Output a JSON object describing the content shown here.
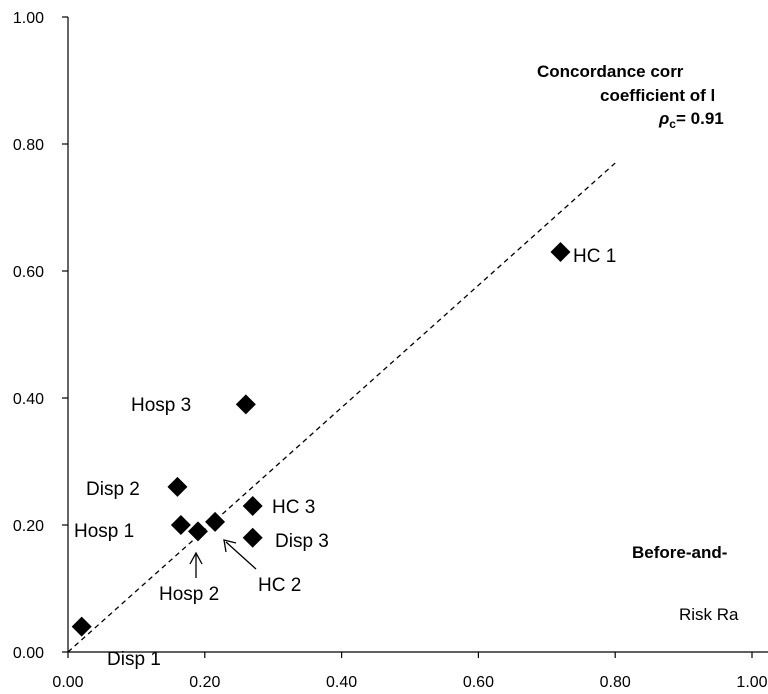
{
  "chart_data": {
    "type": "scatter",
    "xlim": [
      0,
      1.0
    ],
    "ylim": [
      0,
      1.0
    ],
    "x_ticks": [
      "0.00",
      "0.20",
      "0.40",
      "0.60",
      "0.80",
      "1.00"
    ],
    "y_ticks": [
      "0.00",
      "0.20",
      "0.40",
      "0.60",
      "0.80",
      "1.00"
    ],
    "grid": false,
    "points": [
      {
        "label": "Disp 1",
        "x": 0.02,
        "y": 0.04
      },
      {
        "label": "Disp 2",
        "x": 0.16,
        "y": 0.26
      },
      {
        "label": "Disp 3",
        "x": 0.27,
        "y": 0.18
      },
      {
        "label": "Hosp 1",
        "x": 0.165,
        "y": 0.2
      },
      {
        "label": "Hosp 2",
        "x": 0.19,
        "y": 0.19
      },
      {
        "label": "Hosp 3",
        "x": 0.26,
        "y": 0.39
      },
      {
        "label": "HC 1",
        "x": 0.72,
        "y": 0.63
      },
      {
        "label": "HC 2",
        "x": 0.215,
        "y": 0.205
      },
      {
        "label": "HC 3",
        "x": 0.27,
        "y": 0.23
      }
    ],
    "reference_line": {
      "x": [
        0.0,
        0.8
      ],
      "y": [
        0.0,
        0.77
      ]
    },
    "annotations": {
      "concordance_line1": "Concordance corr",
      "concordance_line2": "coefficient of l",
      "rho_symbol": "ρ",
      "rho_sub": "c",
      "rho_value": "= 0.91",
      "before_after": "Before-and-",
      "risk_ratio": "Risk Ra"
    }
  }
}
